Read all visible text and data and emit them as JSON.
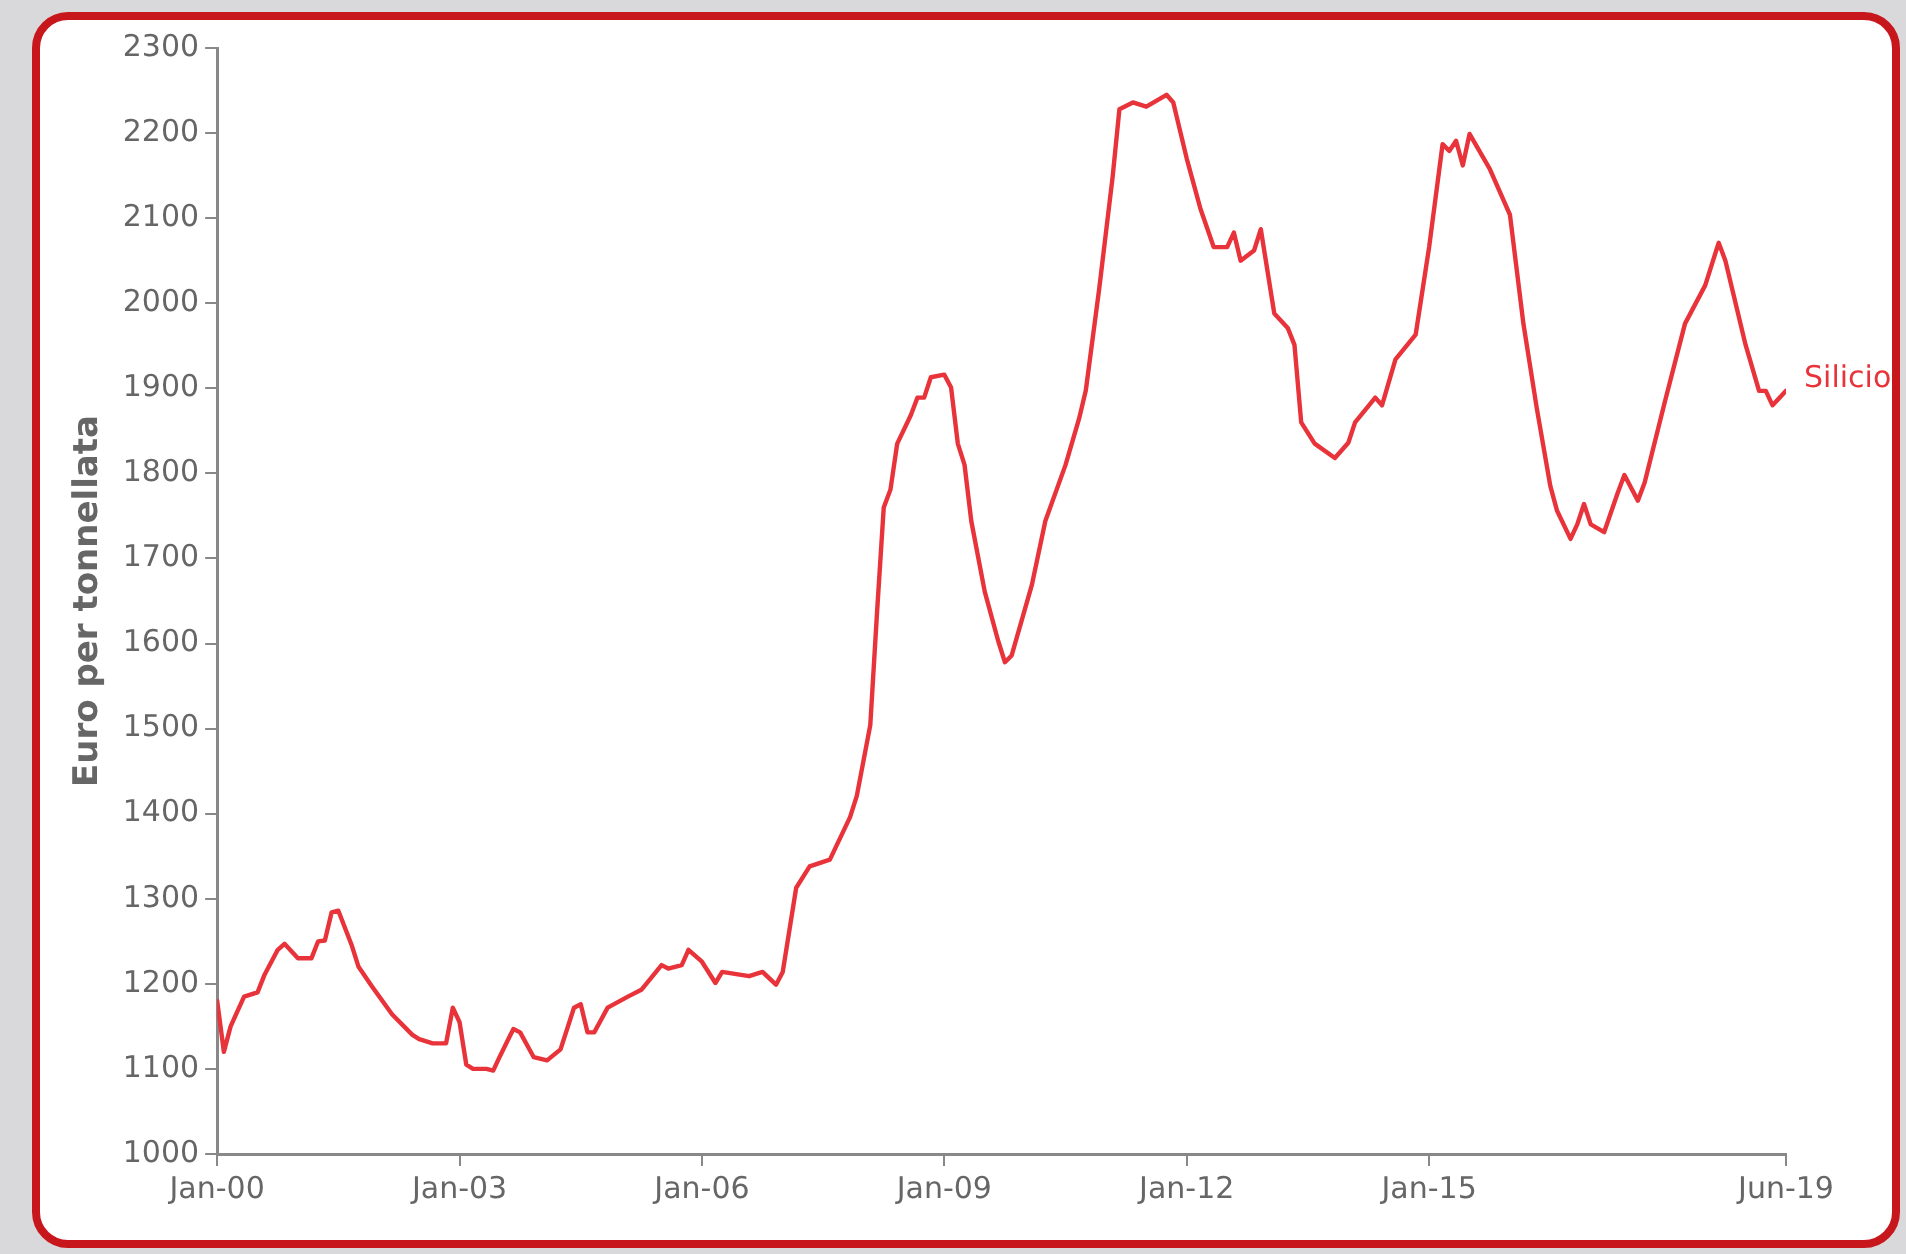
{
  "chart_data": {
    "type": "line",
    "ylabel": "Euro per tonnellata",
    "xlim": [
      "2000-01",
      "2019-06"
    ],
    "xticks": [
      {
        "value": "2000-01",
        "label": "Jan-00"
      },
      {
        "value": "2003-01",
        "label": "Jan-03"
      },
      {
        "value": "2006-01",
        "label": "Jan-06"
      },
      {
        "value": "2009-01",
        "label": "Jan-09"
      },
      {
        "value": "2012-01",
        "label": "Jan-12"
      },
      {
        "value": "2015-01",
        "label": "Jan-15"
      },
      {
        "value": "2019-06",
        "label": "Jun-19"
      }
    ],
    "ylim": [
      1000,
      2300
    ],
    "yticks": [
      1000,
      1100,
      1200,
      1300,
      1400,
      1500,
      1600,
      1700,
      1800,
      1900,
      2000,
      2100,
      2200,
      2300
    ],
    "grid": false,
    "legend": false,
    "marker": "none",
    "line_style": "solid",
    "series": [
      {
        "name": "Silicio",
        "color": "#e8333a",
        "x": [
          "2000-01",
          "2000-02",
          "2000-03",
          "2000-05",
          "2000-07",
          "2000-08",
          "2000-10",
          "2000-11",
          "2001-01",
          "2001-03",
          "2001-04",
          "2001-05",
          "2001-06",
          "2001-07",
          "2001-09",
          "2001-10",
          "2001-12",
          "2002-03",
          "2002-06",
          "2002-07",
          "2002-09",
          "2002-11",
          "2002-12",
          "2003-01",
          "2003-02",
          "2003-03",
          "2003-05",
          "2003-06",
          "2003-07",
          "2003-09",
          "2003-10",
          "2003-12",
          "2004-02",
          "2004-04",
          "2004-06",
          "2004-07",
          "2004-08",
          "2004-09",
          "2004-11",
          "2005-02",
          "2005-04",
          "2005-07",
          "2005-08",
          "2005-10",
          "2005-11",
          "2006-01",
          "2006-03",
          "2006-04",
          "2006-08",
          "2006-10",
          "2006-12",
          "2007-01",
          "2007-03",
          "2007-05",
          "2007-08",
          "2007-11",
          "2007-12",
          "2008-02",
          "2008-03",
          "2008-04",
          "2008-05",
          "2008-06",
          "2008-08",
          "2008-09",
          "2008-10",
          "2008-11",
          "2009-01",
          "2009-02",
          "2009-03",
          "2009-04",
          "2009-05",
          "2009-07",
          "2009-09",
          "2009-10",
          "2009-11",
          "2010-02",
          "2010-04",
          "2010-07",
          "2010-09",
          "2010-10",
          "2010-12",
          "2011-02",
          "2011-03",
          "2011-05",
          "2011-07",
          "2011-10",
          "2011-11",
          "2012-01",
          "2012-03",
          "2012-05",
          "2012-07",
          "2012-08",
          "2012-09",
          "2012-11",
          "2012-12",
          "2013-02",
          "2013-04",
          "2013-05",
          "2013-06",
          "2013-08",
          "2013-11",
          "2014-01",
          "2014-02",
          "2014-05",
          "2014-06",
          "2014-08",
          "2014-11",
          "2015-01",
          "2015-03",
          "2015-04",
          "2015-05",
          "2015-06",
          "2015-07",
          "2015-10",
          "2016-01",
          "2016-03",
          "2016-05",
          "2016-07",
          "2016-08",
          "2016-10",
          "2016-11",
          "2016-12",
          "2017-01",
          "2017-03",
          "2017-05",
          "2017-06",
          "2017-08",
          "2017-09",
          "2017-12",
          "2018-03",
          "2018-06",
          "2018-08",
          "2018-09",
          "2018-12",
          "2019-02",
          "2019-03",
          "2019-04",
          "2019-06"
        ],
        "values": [
          1180,
          1120,
          1150,
          1185,
          1190,
          1210,
          1240,
          1247,
          1230,
          1230,
          1250,
          1251,
          1284,
          1286,
          1245,
          1220,
          1197,
          1164,
          1140,
          1135,
          1130,
          1130,
          1172,
          1155,
          1105,
          1100,
          1100,
          1098,
          1115,
          1147,
          1143,
          1114,
          1110,
          1123,
          1172,
          1176,
          1143,
          1143,
          1172,
          1185,
          1193,
          1222,
          1218,
          1222,
          1240,
          1226,
          1201,
          1214,
          1209,
          1214,
          1199,
          1214,
          1313,
          1338,
          1346,
          1396,
          1421,
          1504,
          1636,
          1760,
          1781,
          1835,
          1868,
          1889,
          1889,
          1913,
          1916,
          1901,
          1835,
          1810,
          1744,
          1661,
          1603,
          1578,
          1586,
          1669,
          1744,
          1810,
          1864,
          1897,
          2017,
          2149,
          2228,
          2236,
          2231,
          2245,
          2236,
          2170,
          2112,
          2066,
          2066,
          2083,
          2050,
          2062,
          2087,
          1988,
          1971,
          1951,
          1860,
          1835,
          1818,
          1836,
          1860,
          1889,
          1880,
          1934,
          1963,
          2066,
          2187,
          2179,
          2191,
          2162,
          2199,
          2158,
          2104,
          1976,
          1876,
          1785,
          1756,
          1723,
          1740,
          1764,
          1740,
          1731,
          1777,
          1798,
          1768,
          1789,
          1884,
          1976,
          2021,
          2071,
          2050,
          1951,
          1897,
          1897,
          1880,
          1897
        ]
      }
    ]
  }
}
